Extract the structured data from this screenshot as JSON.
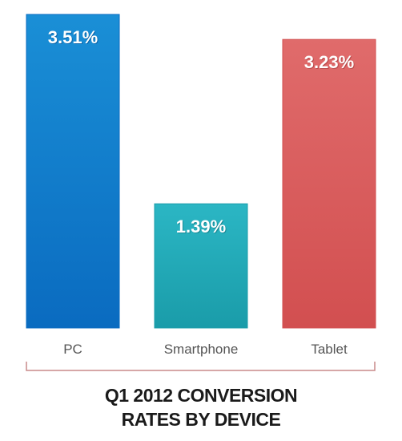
{
  "chart_data": {
    "type": "bar",
    "title_lines": [
      "Q1 2012 CONVERSION",
      "RATES BY DEVICE"
    ],
    "categories": [
      "PC",
      "Smartphone",
      "Tablet"
    ],
    "values": [
      3.51,
      1.39,
      3.23
    ],
    "value_labels": [
      "3.51%",
      "1.39%",
      "3.23%"
    ],
    "unit": "%",
    "ylim": [
      0,
      3.51
    ],
    "grid": false,
    "legend": "none",
    "colors": {
      "PC": {
        "top": "#1a8fd6",
        "bottom": "#0a6bc0",
        "label_shadow": "#064f91"
      },
      "Smartphone": {
        "top": "#2bb6c4",
        "bottom": "#1a9ca9",
        "label_shadow": "#0f6f79"
      },
      "Tablet": {
        "top": "#e06b6b",
        "bottom": "#d24f50",
        "label_shadow": "#9c3434"
      }
    },
    "axis_bracket_color": "#c98a8a"
  }
}
